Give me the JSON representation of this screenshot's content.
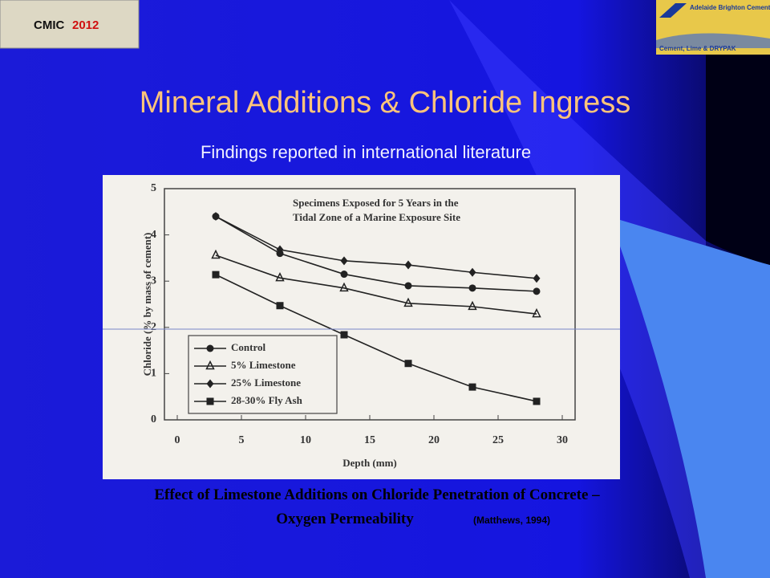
{
  "slide": {
    "badge": {
      "name": "CMIC",
      "year": "2012"
    },
    "logo": {
      "brand": "Adelaide Brighton Cement",
      "tagline": "Cement, Lime & DRYPAK"
    },
    "title": "Mineral Additions & Chloride Ingress",
    "subtitle": "Findings reported in international literature",
    "caption": "Effect of Limestone Additions on Chloride Penetration of Concrete – Oxygen Permeability",
    "citation": "(Matthews, 1994)"
  },
  "chart_data": {
    "type": "line",
    "annotation": [
      "Specimens Exposed for 5 Years in the",
      "Tidal Zone of a Marine Exposure Site"
    ],
    "x_label": "Depth (mm)",
    "y_label": "Chloride (% by mass of cement)",
    "x": [
      3,
      8,
      13,
      18,
      23,
      28
    ],
    "series": [
      {
        "name": "Control",
        "color": "#222222",
        "marker": "circle",
        "values": [
          4.4,
          3.6,
          3.15,
          2.9,
          2.85,
          2.78
        ]
      },
      {
        "name": "5% Limestone",
        "color": "#222222",
        "marker": "triangle",
        "values": [
          3.56,
          3.07,
          2.85,
          2.52,
          2.45,
          2.29
        ]
      },
      {
        "name": "25% Limestone",
        "color": "#222222",
        "marker": "diamond",
        "values": [
          4.4,
          3.68,
          3.44,
          3.35,
          3.19,
          3.06
        ]
      },
      {
        "name": "28-30% Fly Ash",
        "color": "#222222",
        "marker": "square",
        "values": [
          3.14,
          2.47,
          1.84,
          1.22,
          0.71,
          0.4
        ]
      }
    ],
    "xlim": [
      -1,
      31
    ],
    "ylim": [
      0,
      5
    ],
    "xticks": [
      0,
      5,
      10,
      15,
      20,
      25,
      30
    ],
    "yticks": [
      0,
      1,
      2,
      3,
      4,
      5
    ]
  }
}
